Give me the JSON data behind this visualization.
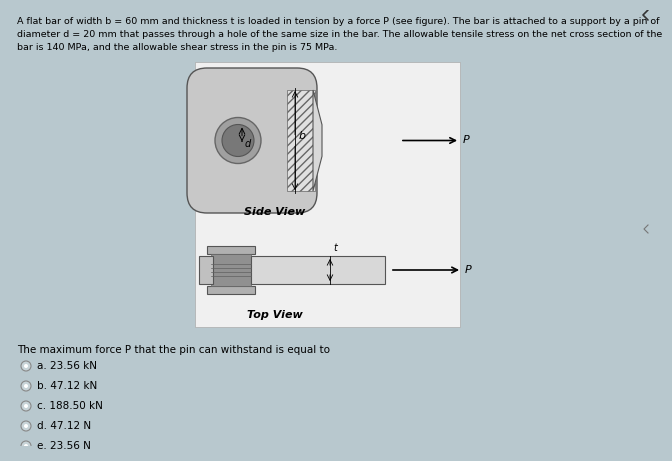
{
  "background_color": "#b8c8ce",
  "title_line1": "A flat bar of width b = 60 mm and thickness t is loaded in tension by a force P (see figure). The bar is attached to a support by a pin of",
  "title_line2": "diameter d = 20 mm that passes through a hole of the same size in the bar. The allowable tensile stress on the net cross section of the",
  "title_line3": "bar is 140 MPa, and the allowable shear stress in the pin is 75 MPa.",
  "question_text": "The maximum force P that the pin can withstand is equal to",
  "options": [
    "a. 23.56 kN",
    "b. 47.12 kN",
    "c. 188.50 kN",
    "d. 47.12 N",
    "e. 23.56 N"
  ],
  "panel_bg": "#f0f0f0",
  "side_view_label": "Side View",
  "top_view_label": "Top View",
  "bar_gray": "#c8c8c8",
  "pin_gray": "#a0a0a0",
  "pin_dark": "#787878",
  "hatch_color": "#b0b0b0"
}
